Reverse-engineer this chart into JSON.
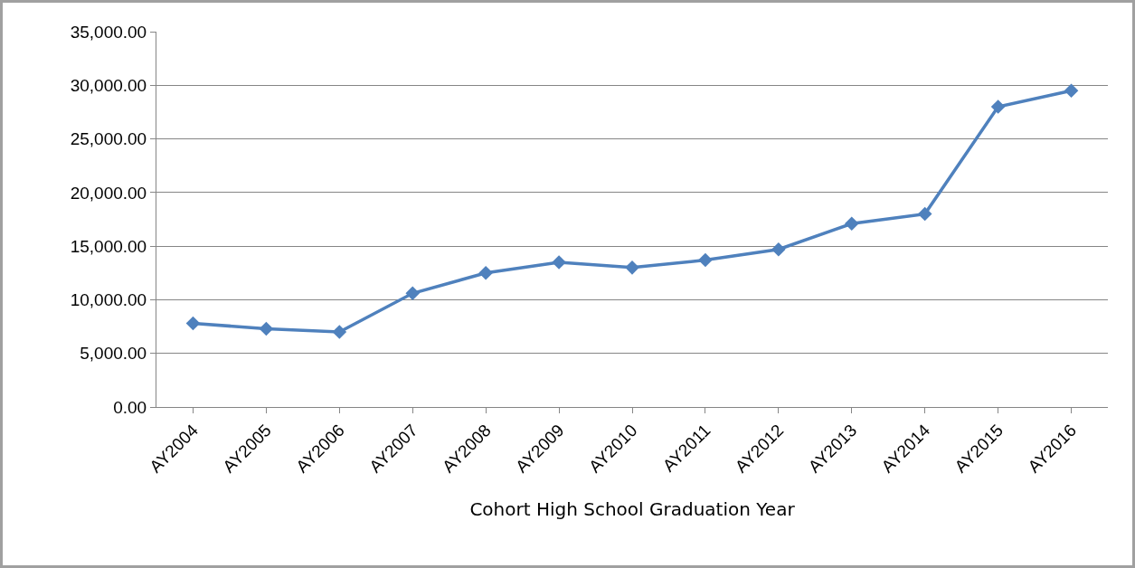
{
  "chart_data": {
    "type": "line",
    "xlabel": "Cohort High School Graduation Year",
    "categories": [
      "AY2004",
      "AY2005",
      "AY2006",
      "AY2007",
      "AY2008",
      "AY2009",
      "AY2010",
      "AY2011",
      "AY2012",
      "AY2013",
      "AY2014",
      "AY2015",
      "AY2016"
    ],
    "series": [
      {
        "color": "#4f81bd",
        "values": [
          7800,
          7300,
          7000,
          10600,
          12500,
          13500,
          13000,
          13700,
          14700,
          17100,
          18000,
          28000,
          29500
        ]
      }
    ],
    "ylim": [
      0,
      35000
    ],
    "yticks": [
      {
        "value": 0,
        "label": "0.00"
      },
      {
        "value": 5000,
        "label": "5,000.00"
      },
      {
        "value": 10000,
        "label": "10,000.00"
      },
      {
        "value": 15000,
        "label": "15,000.00"
      },
      {
        "value": 20000,
        "label": "20,000.00"
      },
      {
        "value": 25000,
        "label": "25,000.00"
      },
      {
        "value": 30000,
        "label": "30,000.00"
      },
      {
        "value": 35000,
        "label": "35,000.00"
      }
    ],
    "grid": "y",
    "marker": "diamond",
    "line_style": "solid"
  }
}
